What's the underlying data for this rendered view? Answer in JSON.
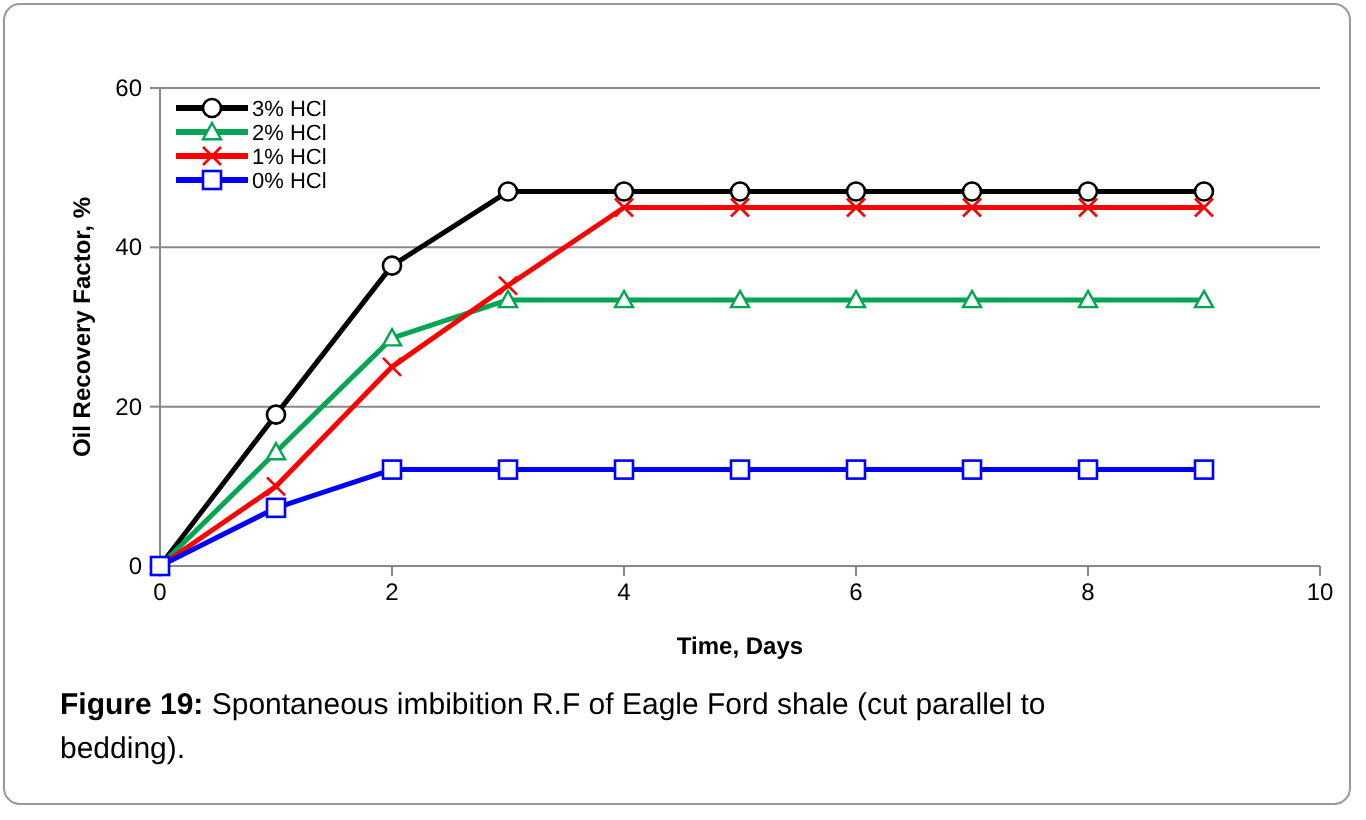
{
  "chart_data": {
    "type": "line",
    "xlabel": "Time, Days",
    "ylabel": "Oil Recovery Factor, %",
    "xlim": [
      0,
      10
    ],
    "xticks": [
      0,
      2,
      4,
      6,
      8,
      10
    ],
    "ylim": [
      0,
      60
    ],
    "yticks": [
      0,
      20,
      40,
      60
    ],
    "grid": "y",
    "legend": "top left",
    "line_style": "solid",
    "x": [
      0,
      1,
      2,
      3,
      4,
      5,
      6,
      7,
      8,
      9
    ],
    "series": [
      {
        "name": "3% HCl",
        "color": "#000000",
        "marker": "circle",
        "values": [
          0,
          19,
          37.7,
          47,
          47,
          47,
          47,
          47,
          47,
          47
        ]
      },
      {
        "name": "2% HCl",
        "color": "#00a651",
        "marker": "triangle",
        "values": [
          0,
          14.3,
          28.6,
          33.4,
          33.4,
          33.4,
          33.4,
          33.4,
          33.4,
          33.4
        ]
      },
      {
        "name": "1% HCl",
        "color": "#ff0000",
        "marker": "cross",
        "values": [
          0,
          10,
          25,
          35.2,
          45,
          45,
          45,
          45,
          45,
          45
        ]
      },
      {
        "name": "0% HCl",
        "color": "#0000ff",
        "marker": "square",
        "values": [
          0,
          7.3,
          12.1,
          12.1,
          12.1,
          12.1,
          12.1,
          12.1,
          12.1,
          12.1
        ]
      }
    ],
    "annotations": [
      "Figure 19: Spontaneous imbibition R.F of Eagle Ford shale (cut parallel to bedding)."
    ]
  }
}
